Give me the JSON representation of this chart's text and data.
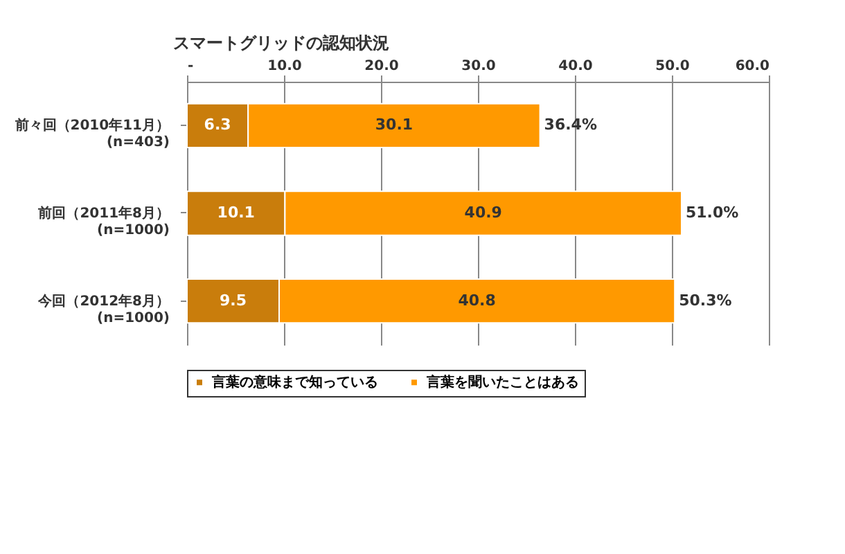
{
  "chart_data": {
    "type": "bar",
    "orientation": "horizontal",
    "stacked": true,
    "title": "スマートグリッドの認知状況",
    "categories": [
      "前々回（2010年11月）\n(n=403)",
      "前回（2011年8月）\n(n=1000)",
      "今回（2012年8月）\n(n=1000)"
    ],
    "series": [
      {
        "name": "言葉の意味まで知っている",
        "color": "#c97d0c",
        "values": [
          6.3,
          10.1,
          9.5
        ]
      },
      {
        "name": "言葉を聞いたことはある",
        "color": "#ff9900",
        "values": [
          30.1,
          40.9,
          40.8
        ]
      }
    ],
    "totals": [
      "36.4%",
      "51.0%",
      "50.3%"
    ],
    "data_labels": true,
    "xlim": [
      0,
      60
    ],
    "xticks": [
      {
        "value": 0,
        "label": "-"
      },
      {
        "value": 10,
        "label": "10.0"
      },
      {
        "value": 20,
        "label": "20.0"
      },
      {
        "value": 30,
        "label": "30.0"
      },
      {
        "value": 40,
        "label": "40.0"
      },
      {
        "value": 50,
        "label": "50.0"
      },
      {
        "value": 60,
        "label": "60.0"
      }
    ],
    "grid": "x",
    "legend": "bottom"
  }
}
